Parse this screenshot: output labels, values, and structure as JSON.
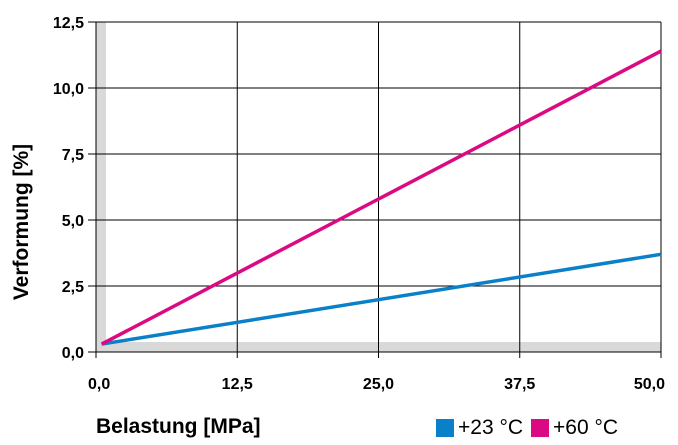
{
  "chart_data": {
    "type": "line",
    "xlabel": "Belastung [MPa]",
    "ylabel": "Verformung [%]",
    "xlim": [
      0,
      50
    ],
    "ylim": [
      0,
      12.5
    ],
    "x_ticks": [
      "0,0",
      "12,5",
      "25,0",
      "37,5",
      "50,0"
    ],
    "y_ticks": [
      "0,0",
      "2,5",
      "5,0",
      "7,5",
      "10,0",
      "12,5"
    ],
    "grid": true,
    "legend_position": "bottom-right",
    "series": [
      {
        "name": "+23 °C",
        "color": "#0a80c8",
        "x": [
          0.5,
          50.0
        ],
        "y": [
          0.3,
          3.7
        ]
      },
      {
        "name": "+60 °C",
        "color": "#dc0a82",
        "x": [
          0.5,
          50.0
        ],
        "y": [
          0.3,
          11.4
        ]
      }
    ]
  }
}
